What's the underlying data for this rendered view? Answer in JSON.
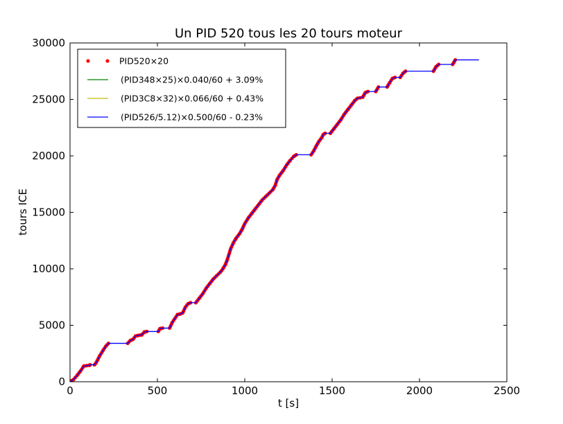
{
  "chart_data": {
    "type": "line",
    "title": "Un PID 520 tous les 20 tours moteur",
    "xlabel": "t [s]",
    "ylabel": "tours ICE",
    "xlim": [
      0,
      2500
    ],
    "ylim": [
      0,
      30000
    ],
    "xticks": [
      0,
      500,
      1000,
      1500,
      2000,
      2500
    ],
    "xtick_labels": [
      "0",
      "500",
      "1000",
      "1500",
      "2000",
      "2500"
    ],
    "yticks": [
      0,
      5000,
      10000,
      15000,
      20000,
      25000,
      30000
    ],
    "ytick_labels": [
      "0",
      "5000",
      "10000",
      "15000",
      "20000",
      "25000",
      "30000"
    ],
    "grid": false,
    "legend_position": "top-left",
    "series": [
      {
        "name": "PID520×20",
        "style": "points",
        "color": "#ff0000",
        "points": [
          [
            0,
            0
          ],
          [
            20,
            200
          ],
          [
            40,
            550
          ],
          [
            60,
            950
          ],
          [
            75,
            1300
          ],
          [
            80,
            1400
          ],
          [
            110,
            1450
          ],
          [
            115,
            1500
          ],
          [
            140,
            1500
          ],
          [
            150,
            1700
          ],
          [
            170,
            2300
          ],
          [
            190,
            2800
          ],
          [
            205,
            3150
          ],
          [
            220,
            3400
          ],
          [
            330,
            3400
          ],
          [
            345,
            3650
          ],
          [
            360,
            3750
          ],
          [
            375,
            4050
          ],
          [
            390,
            4100
          ],
          [
            410,
            4150
          ],
          [
            425,
            4400
          ],
          [
            440,
            4450
          ],
          [
            505,
            4450
          ],
          [
            515,
            4700
          ],
          [
            530,
            4750
          ],
          [
            570,
            4750
          ],
          [
            585,
            5250
          ],
          [
            600,
            5600
          ],
          [
            615,
            5950
          ],
          [
            630,
            6000
          ],
          [
            645,
            6100
          ],
          [
            660,
            6600
          ],
          [
            675,
            6900
          ],
          [
            690,
            7000
          ],
          [
            720,
            7000
          ],
          [
            740,
            7400
          ],
          [
            760,
            7800
          ],
          [
            780,
            8300
          ],
          [
            800,
            8700
          ],
          [
            820,
            9100
          ],
          [
            840,
            9400
          ],
          [
            860,
            9700
          ],
          [
            875,
            10000
          ],
          [
            890,
            10400
          ],
          [
            900,
            10800
          ],
          [
            910,
            11300
          ],
          [
            920,
            11800
          ],
          [
            935,
            12300
          ],
          [
            950,
            12700
          ],
          [
            970,
            13100
          ],
          [
            985,
            13500
          ],
          [
            1000,
            14000
          ],
          [
            1020,
            14500
          ],
          [
            1040,
            14900
          ],
          [
            1060,
            15300
          ],
          [
            1080,
            15700
          ],
          [
            1100,
            16100
          ],
          [
            1120,
            16400
          ],
          [
            1140,
            16700
          ],
          [
            1160,
            17000
          ],
          [
            1175,
            17400
          ],
          [
            1185,
            17900
          ],
          [
            1200,
            18300
          ],
          [
            1220,
            18700
          ],
          [
            1240,
            19200
          ],
          [
            1260,
            19600
          ],
          [
            1280,
            19950
          ],
          [
            1295,
            20100
          ],
          [
            1380,
            20100
          ],
          [
            1395,
            20450
          ],
          [
            1410,
            20900
          ],
          [
            1425,
            21300
          ],
          [
            1440,
            21600
          ],
          [
            1450,
            21900
          ],
          [
            1460,
            22000
          ],
          [
            1490,
            22000
          ],
          [
            1510,
            22400
          ],
          [
            1530,
            22800
          ],
          [
            1550,
            23200
          ],
          [
            1570,
            23700
          ],
          [
            1590,
            24100
          ],
          [
            1610,
            24500
          ],
          [
            1630,
            24900
          ],
          [
            1645,
            25100
          ],
          [
            1675,
            25200
          ],
          [
            1690,
            25600
          ],
          [
            1705,
            25700
          ],
          [
            1750,
            25700
          ],
          [
            1765,
            26100
          ],
          [
            1815,
            26100
          ],
          [
            1830,
            26500
          ],
          [
            1845,
            26850
          ],
          [
            1860,
            26950
          ],
          [
            1890,
            26950
          ],
          [
            1905,
            27300
          ],
          [
            1920,
            27500
          ],
          [
            2080,
            27500
          ],
          [
            2095,
            27900
          ],
          [
            2110,
            28100
          ],
          [
            2190,
            28100
          ],
          [
            2205,
            28500
          ]
        ]
      },
      {
        "name": "(PID348×25)×0.040/60 + 3.09%",
        "style": "line",
        "color": "#008000",
        "points": []
      },
      {
        "name": "(PID3C8×32)×0.066/60 + 0.43%",
        "style": "line",
        "color": "#bfbf00",
        "points": []
      },
      {
        "name": "(PID526/5.12)×0.500/60 - 0.23%",
        "style": "line",
        "color": "#0000ff",
        "points": [
          [
            0,
            0
          ],
          [
            20,
            200
          ],
          [
            40,
            550
          ],
          [
            60,
            950
          ],
          [
            75,
            1300
          ],
          [
            80,
            1400
          ],
          [
            110,
            1450
          ],
          [
            115,
            1500
          ],
          [
            140,
            1500
          ],
          [
            150,
            1700
          ],
          [
            170,
            2300
          ],
          [
            190,
            2800
          ],
          [
            205,
            3150
          ],
          [
            220,
            3400
          ],
          [
            330,
            3400
          ],
          [
            345,
            3650
          ],
          [
            360,
            3750
          ],
          [
            375,
            4050
          ],
          [
            390,
            4100
          ],
          [
            410,
            4150
          ],
          [
            425,
            4400
          ],
          [
            440,
            4450
          ],
          [
            505,
            4450
          ],
          [
            515,
            4700
          ],
          [
            530,
            4750
          ],
          [
            570,
            4750
          ],
          [
            585,
            5250
          ],
          [
            600,
            5600
          ],
          [
            615,
            5950
          ],
          [
            630,
            6000
          ],
          [
            645,
            6100
          ],
          [
            660,
            6600
          ],
          [
            675,
            6900
          ],
          [
            690,
            7000
          ],
          [
            720,
            7000
          ],
          [
            740,
            7400
          ],
          [
            760,
            7800
          ],
          [
            780,
            8300
          ],
          [
            800,
            8700
          ],
          [
            820,
            9100
          ],
          [
            840,
            9400
          ],
          [
            860,
            9700
          ],
          [
            875,
            10000
          ],
          [
            890,
            10400
          ],
          [
            900,
            10800
          ],
          [
            910,
            11300
          ],
          [
            920,
            11800
          ],
          [
            935,
            12300
          ],
          [
            950,
            12700
          ],
          [
            970,
            13100
          ],
          [
            985,
            13500
          ],
          [
            1000,
            14000
          ],
          [
            1020,
            14500
          ],
          [
            1040,
            14900
          ],
          [
            1060,
            15300
          ],
          [
            1080,
            15700
          ],
          [
            1100,
            16100
          ],
          [
            1120,
            16400
          ],
          [
            1140,
            16700
          ],
          [
            1160,
            17000
          ],
          [
            1175,
            17400
          ],
          [
            1185,
            17900
          ],
          [
            1200,
            18300
          ],
          [
            1220,
            18700
          ],
          [
            1240,
            19200
          ],
          [
            1260,
            19600
          ],
          [
            1280,
            19950
          ],
          [
            1295,
            20100
          ],
          [
            1380,
            20100
          ],
          [
            1395,
            20450
          ],
          [
            1410,
            20900
          ],
          [
            1425,
            21300
          ],
          [
            1440,
            21600
          ],
          [
            1450,
            21900
          ],
          [
            1460,
            22000
          ],
          [
            1490,
            22000
          ],
          [
            1510,
            22400
          ],
          [
            1530,
            22800
          ],
          [
            1550,
            23200
          ],
          [
            1570,
            23700
          ],
          [
            1590,
            24100
          ],
          [
            1610,
            24500
          ],
          [
            1630,
            24900
          ],
          [
            1645,
            25100
          ],
          [
            1675,
            25200
          ],
          [
            1690,
            25600
          ],
          [
            1705,
            25700
          ],
          [
            1750,
            25700
          ],
          [
            1765,
            26100
          ],
          [
            1815,
            26100
          ],
          [
            1830,
            26500
          ],
          [
            1845,
            26850
          ],
          [
            1860,
            26950
          ],
          [
            1890,
            26950
          ],
          [
            1905,
            27300
          ],
          [
            1920,
            27500
          ],
          [
            2080,
            27500
          ],
          [
            2095,
            27900
          ],
          [
            2110,
            28100
          ],
          [
            2190,
            28100
          ],
          [
            2205,
            28500
          ],
          [
            2340,
            28500
          ]
        ]
      }
    ]
  }
}
